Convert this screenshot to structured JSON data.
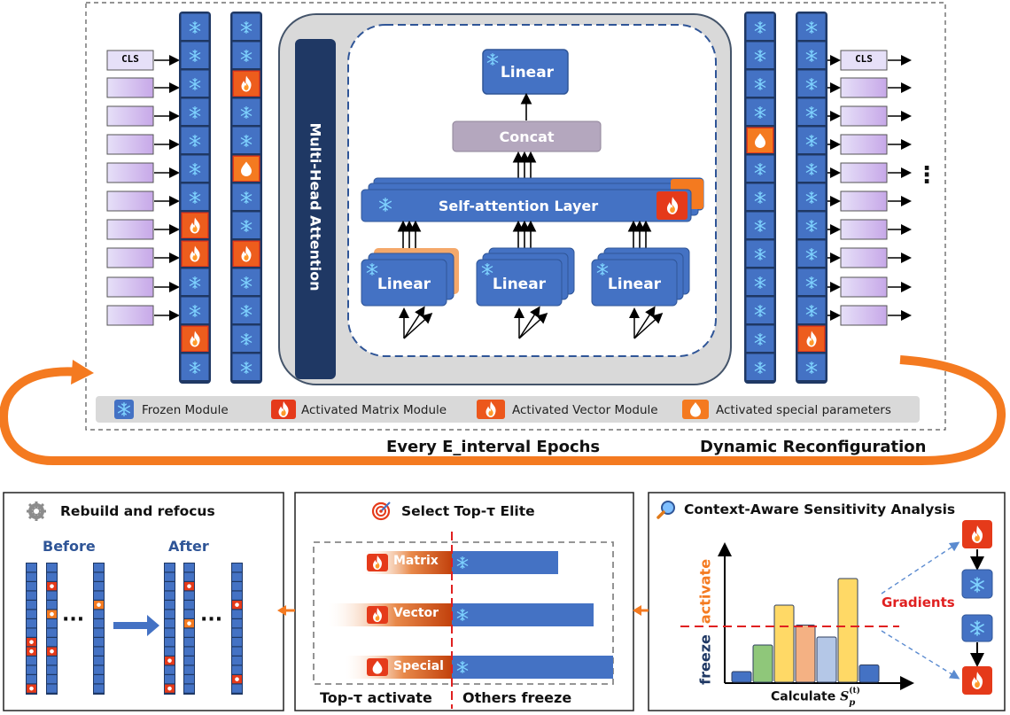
{
  "top": {
    "cls_token": "CLS",
    "mha_label": "Multi-Head Attention",
    "linear_top": "Linear",
    "concat": "Concat",
    "self_attention": "Self-attention Layer",
    "linear_heads": [
      "Linear",
      "Linear",
      "Linear"
    ],
    "ellipsis": "⋮",
    "every_epochs": "Every E_interval Epochs",
    "dynamic": "Dynamic Reconfiguration"
  },
  "legend": {
    "frozen": "Frozen Module",
    "matrix": "Activated Matrix Module",
    "vector": "Activated Vector Module",
    "special": "Activated special parameters"
  },
  "panel_left": {
    "title": "Rebuild and refocus",
    "before": "Before",
    "after": "After",
    "dots": "···"
  },
  "panel_mid": {
    "title": "Select Top-τ Elite",
    "bars": [
      {
        "label": "Matrix",
        "total": 1.0
      },
      {
        "label": "Vector",
        "total": 1.0
      },
      {
        "label": "Special",
        "total": 1.0
      }
    ],
    "bottom_left": "Top-τ activate",
    "bottom_right": "Others freeze"
  },
  "panel_right": {
    "title": "Context-Aware Sensitivity Analysis",
    "y_activate": "activate",
    "y_freeze": "freeze",
    "gradients": "Gradients",
    "xlabel_prefix": "Calculate",
    "xlabel_sym": "S",
    "xlabel_sub": "p",
    "xlabel_sup": "(t)",
    "bar_heights": [
      0.08,
      0.28,
      0.58,
      0.43,
      0.34,
      0.78,
      0.13
    ]
  },
  "colors": {
    "blue": "#4472C4",
    "dark_navy": "#1F3864",
    "fire_red": "#E53A1A",
    "orange": "#F47A20",
    "red_dash": "#E02020"
  }
}
